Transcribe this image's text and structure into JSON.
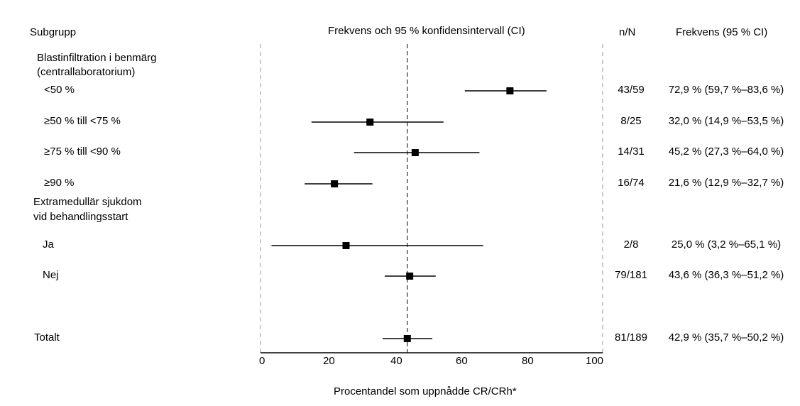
{
  "chart_data": {
    "type": "forest",
    "headers": {
      "subgroup": "Subgrupp",
      "plot": "Frekvens och 95 % konfidensintervall (CI)",
      "n": "n/N",
      "freq": "Frekvens (95 % CI)"
    },
    "xlabel": "Procentandel som uppnådde CR/CRh*",
    "xlim": [
      0,
      100
    ],
    "xticks": [
      "0",
      "20",
      "40",
      "60",
      "80",
      "100"
    ],
    "reference_line": 42.9,
    "groups": [
      {
        "label_lines": [
          "Blastinfiltration i benmärg",
          "(centrallaboratorium)"
        ]
      },
      {
        "label_lines": [
          "Extramedullär sjukdom",
          "vid behandlingsstart"
        ]
      }
    ],
    "rows": [
      {
        "label": "<50 %",
        "n": "43/59",
        "text": "72,9 % (59,7 %–83,6 %)",
        "est": 72.9,
        "lo": 59.7,
        "hi": 83.6
      },
      {
        "label": "≥50 % till <75 %",
        "n": "8/25",
        "text": "32,0 % (14,9 %–53,5 %)",
        "est": 32.0,
        "lo": 14.9,
        "hi": 53.5
      },
      {
        "label": "≥75 % till <90 %",
        "n": "14/31",
        "text": "45,2 % (27,3 %–64,0 %)",
        "est": 45.2,
        "lo": 27.3,
        "hi": 64.0
      },
      {
        "label": "≥90 %",
        "n": "16/74",
        "text": "21,6 % (12,9 %–32,7 %)",
        "est": 21.6,
        "lo": 12.9,
        "hi": 32.7
      },
      {
        "label": "Ja",
        "n": "2/8",
        "text": "25,0 % (3,2 %–65,1 %)",
        "est": 25.0,
        "lo": 3.2,
        "hi": 65.1
      },
      {
        "label": "Nej",
        "n": "79/181",
        "text": "43,6 % (36,3 %–51,2 %)",
        "est": 43.6,
        "lo": 36.3,
        "hi": 51.2
      },
      {
        "label": "Totalt",
        "n": "81/189",
        "text": "42,9 % (35,7 %–50,2 %)",
        "est": 42.9,
        "lo": 35.7,
        "hi": 50.2
      }
    ]
  }
}
